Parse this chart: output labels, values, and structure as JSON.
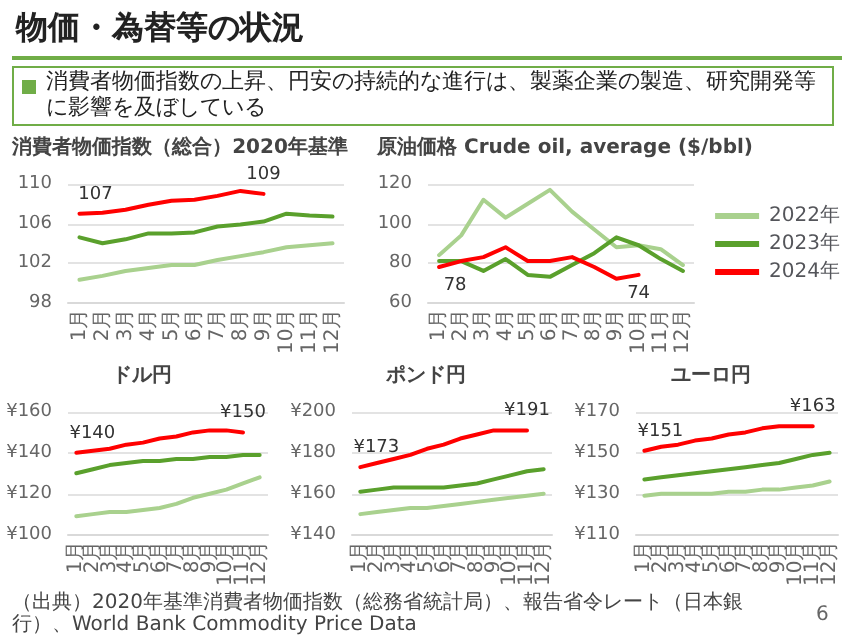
{
  "chart_data": [
    {
      "type": "other",
      "title": "物価・為替等の状況",
      "annotations": [
        "消費者物価指数の上昇、円安の持続的な進行は、製薬企業の製造、研究開発等に影響を及ぼしている",
        "（出典）2020年基準消費者物価指数（総務省統計局）、報告省令レート（日本銀行）、World Bank Commodity Price Data",
        "6"
      ]
    },
    {
      "type": "line",
      "title": "消費者物価指数（総合）2020年基準",
      "categories": [
        "1月",
        "2月",
        "3月",
        "4月",
        "5月",
        "6月",
        "7月",
        "8月",
        "9月",
        "10月",
        "11月",
        "12月"
      ],
      "ylim": [
        98,
        110
      ],
      "yticks": [
        98,
        102,
        106,
        110
      ],
      "grid": "y",
      "marker": "none",
      "line_style": "solid",
      "series": [
        {
          "color": "#a9d18e",
          "values": [
            100.3,
            100.7,
            101.2,
            101.5,
            101.8,
            101.8,
            102.3,
            102.7,
            103.1,
            103.6,
            103.8,
            104.0
          ]
        },
        {
          "color": "#5aa02c",
          "values": [
            104.6,
            104.0,
            104.4,
            105.0,
            105.0,
            105.1,
            105.7,
            105.9,
            106.2,
            107.0,
            106.8,
            106.7
          ]
        },
        {
          "color": "#ff0000",
          "values": [
            107,
            107.1,
            107.4,
            107.9,
            108.3,
            108.4,
            108.8,
            109.3,
            109,
            null,
            null,
            null
          ],
          "value_labels": [
            "107",
            null,
            null,
            null,
            null,
            null,
            null,
            null,
            "109",
            null,
            null,
            null
          ]
        }
      ]
    },
    {
      "type": "line",
      "title": "原油価格 Crude oil, average ($/bbl)",
      "categories": [
        "1月",
        "2月",
        "3月",
        "4月",
        "5月",
        "6月",
        "7月",
        "8月",
        "9月",
        "10月",
        "11月",
        "12月"
      ],
      "ylim": [
        60,
        120
      ],
      "yticks": [
        60,
        80,
        100,
        120
      ],
      "grid": "y",
      "marker": "none",
      "line_style": "solid",
      "legend": "right",
      "series": [
        {
          "name": "2022年",
          "color": "#a9d18e",
          "values": [
            84,
            94,
            112,
            103,
            110,
            117,
            106,
            97,
            88,
            89,
            87,
            79
          ]
        },
        {
          "name": "2023年",
          "color": "#5aa02c",
          "values": [
            81,
            81,
            76,
            82,
            74,
            73,
            79,
            85,
            93,
            89,
            82,
            76
          ]
        },
        {
          "name": "2024年",
          "color": "#ff0000",
          "values": [
            78,
            81,
            83,
            88,
            81,
            81,
            83,
            78,
            72,
            74,
            null,
            null
          ],
          "value_labels": [
            "78",
            null,
            null,
            null,
            null,
            null,
            null,
            null,
            null,
            "74",
            null,
            null
          ]
        }
      ]
    },
    {
      "type": "line",
      "title": "ドル円",
      "categories": [
        "1月",
        "2月",
        "3月",
        "4月",
        "5月",
        "6月",
        "7月",
        "8月",
        "9月",
        "10月",
        "11月",
        "12月"
      ],
      "ylim": [
        100,
        160
      ],
      "yticks": [
        {
          "value": 100,
          "label": "¥100"
        },
        {
          "value": 120,
          "label": "¥120"
        },
        {
          "value": 140,
          "label": "¥140"
        },
        {
          "value": 160,
          "label": "¥160"
        }
      ],
      "grid": "y",
      "marker": "none",
      "line_style": "solid",
      "series": [
        {
          "color": "#a9d18e",
          "values": [
            109,
            110,
            111,
            111,
            112,
            113,
            115,
            118,
            120,
            122,
            125,
            128
          ]
        },
        {
          "color": "#5aa02c",
          "values": [
            130,
            132,
            134,
            135,
            136,
            136,
            137,
            137,
            138,
            138,
            139,
            139
          ]
        },
        {
          "color": "#ff0000",
          "values": [
            140,
            141,
            142,
            144,
            145,
            147,
            148,
            150,
            151,
            151,
            150,
            null
          ],
          "value_labels": [
            "¥140",
            null,
            null,
            null,
            null,
            null,
            null,
            null,
            null,
            null,
            "¥150",
            null
          ]
        }
      ]
    },
    {
      "type": "line",
      "title": "ポンド円",
      "categories": [
        "1月",
        "2月",
        "3月",
        "4月",
        "5月",
        "6月",
        "7月",
        "8月",
        "9月",
        "10月",
        "11月",
        "12月"
      ],
      "ylim": [
        140,
        200
      ],
      "yticks": [
        {
          "value": 140,
          "label": "¥140"
        },
        {
          "value": 160,
          "label": "¥160"
        },
        {
          "value": 180,
          "label": "¥180"
        },
        {
          "value": 200,
          "label": "¥200"
        }
      ],
      "grid": "y",
      "marker": "none",
      "line_style": "solid",
      "series": [
        {
          "color": "#a9d18e",
          "values": [
            150,
            151,
            152,
            153,
            153,
            154,
            155,
            156,
            157,
            158,
            159,
            160
          ]
        },
        {
          "color": "#5aa02c",
          "values": [
            161,
            162,
            163,
            163,
            163,
            163,
            164,
            165,
            167,
            169,
            171,
            172
          ]
        },
        {
          "color": "#ff0000",
          "values": [
            173,
            175,
            177,
            179,
            182,
            184,
            187,
            189,
            191,
            191,
            191,
            null
          ],
          "value_labels": [
            "¥173",
            null,
            null,
            null,
            null,
            null,
            null,
            null,
            null,
            null,
            "¥191",
            null
          ]
        }
      ]
    },
    {
      "type": "line",
      "title": "ユーロ円",
      "categories": [
        "1月",
        "2月",
        "3月",
        "4月",
        "5月",
        "6月",
        "7月",
        "8月",
        "9月",
        "10月",
        "11月",
        "12月"
      ],
      "ylim": [
        110,
        170
      ],
      "yticks": [
        {
          "value": 110,
          "label": "¥110"
        },
        {
          "value": 130,
          "label": "¥130"
        },
        {
          "value": 150,
          "label": "¥150"
        },
        {
          "value": 170,
          "label": "¥170"
        }
      ],
      "grid": "y",
      "marker": "none",
      "line_style": "solid",
      "series": [
        {
          "color": "#a9d18e",
          "values": [
            129,
            130,
            130,
            130,
            130,
            131,
            131,
            132,
            132,
            133,
            134,
            136
          ]
        },
        {
          "color": "#5aa02c",
          "values": [
            137,
            138,
            139,
            140,
            141,
            142,
            143,
            144,
            145,
            147,
            149,
            150
          ]
        },
        {
          "color": "#ff0000",
          "values": [
            151,
            153,
            154,
            156,
            157,
            159,
            160,
            162,
            163,
            163,
            163,
            null
          ],
          "value_labels": [
            "¥151",
            null,
            null,
            null,
            null,
            null,
            null,
            null,
            null,
            null,
            "¥163",
            null
          ]
        }
      ]
    }
  ]
}
